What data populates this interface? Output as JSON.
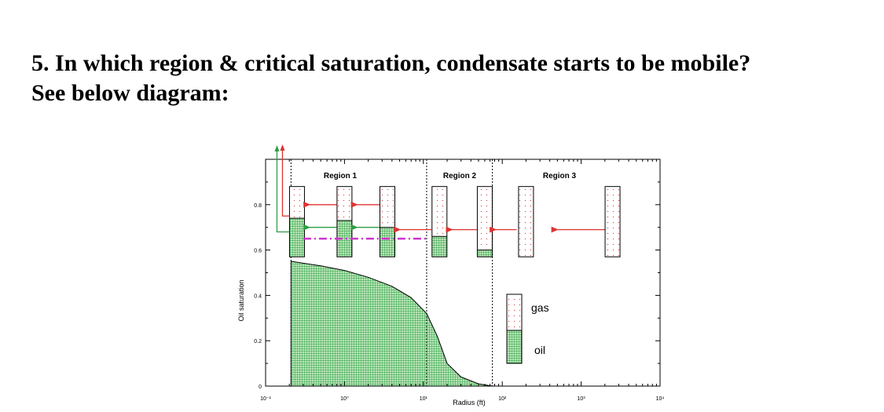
{
  "question": {
    "line1": "5. In which region & critical saturation, condensate starts to be mobile?",
    "line2": "See below diagram:"
  },
  "figure": {
    "type": "area",
    "ylabel": "Oil saturation",
    "xlabel": "Radius (ft)",
    "x_scale": "log",
    "xlim": [
      0.1,
      10000
    ],
    "ylim": [
      0,
      1
    ],
    "x_ticks": [
      {
        "value": 0.1,
        "label": "10⁻¹"
      },
      {
        "value": 1,
        "label": "10⁰"
      },
      {
        "value": 10,
        "label": "10¹"
      },
      {
        "value": 100,
        "label": "10²"
      },
      {
        "value": 1000,
        "label": "10³"
      },
      {
        "value": 10000,
        "label": "10⁴"
      }
    ],
    "y_ticks": [
      {
        "value": 0,
        "label": "0"
      },
      {
        "value": 0.2,
        "label": "0.2"
      },
      {
        "value": 0.4,
        "label": "0.4"
      },
      {
        "value": 0.6,
        "label": "0.6"
      },
      {
        "value": 0.8,
        "label": "0.8"
      }
    ],
    "regions": [
      {
        "label": "Region 1",
        "x_from": 0.21,
        "x_to": 11
      },
      {
        "label": "Region 2",
        "x_from": 11,
        "x_to": 75
      },
      {
        "label": "Region 3",
        "x_from": 75,
        "x_to": 10000
      }
    ],
    "oil_saturation_profile": {
      "x": [
        0.21,
        0.5,
        1,
        2,
        4,
        7,
        11,
        15,
        20,
        30,
        50,
        75
      ],
      "y": [
        0.55,
        0.53,
        0.51,
        0.48,
        0.44,
        0.39,
        0.32,
        0.22,
        0.1,
        0.04,
        0.01,
        0.0
      ]
    },
    "cells": [
      {
        "x": 0.25,
        "oil_fraction": 0.74
      },
      {
        "x": 1.0,
        "oil_fraction": 0.73
      },
      {
        "x": 3.5,
        "oil_fraction": 0.7
      },
      {
        "x": 16,
        "oil_fraction": 0.66
      },
      {
        "x": 60,
        "oil_fraction": 0.6
      },
      {
        "x": 200,
        "oil_fraction": 0.55
      },
      {
        "x": 2500,
        "oil_fraction": 0.55
      }
    ],
    "critical_saturation_line": {
      "x_from": 0.3,
      "x_to": 11,
      "y": 0.65
    },
    "legend": {
      "gas": "gas",
      "oil": "oil"
    },
    "colors": {
      "oil_fill": "#2f9e44",
      "oil_fill_light": "#b8e6b8",
      "gas_dots": "#e03131",
      "red_arrow": "#e03131",
      "green_arrow": "#2f9e44",
      "critical_line": "#cc33cc"
    }
  }
}
